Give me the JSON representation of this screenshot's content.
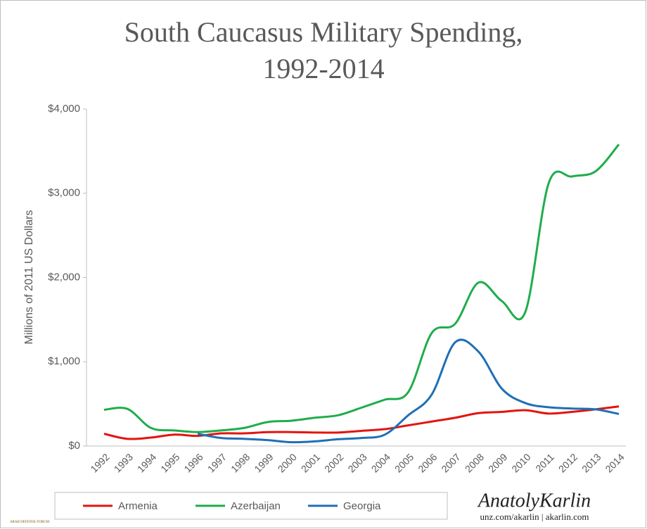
{
  "chart_data": {
    "type": "line",
    "title": [
      "South Caucasus Military Spending,",
      "1992-2014"
    ],
    "y_label": "Millions of 2011 US Dollars",
    "categories": [
      "1992",
      "1993",
      "1994",
      "1995",
      "1996",
      "1997",
      "1998",
      "1999",
      "2000",
      "2001",
      "2002",
      "2003",
      "2004",
      "2005",
      "2006",
      "2007",
      "2008",
      "2009",
      "2010",
      "2011",
      "2012",
      "2013",
      "2014"
    ],
    "series": [
      {
        "name": "Armenia",
        "color": "#e3140f",
        "values": [
          145,
          85,
          100,
          135,
          120,
          150,
          150,
          165,
          165,
          160,
          160,
          180,
          200,
          245,
          290,
          335,
          390,
          405,
          425,
          385,
          405,
          435,
          470
        ]
      },
      {
        "name": "Azerbaijan",
        "color": "#1fad4b",
        "values": [
          430,
          440,
          215,
          185,
          165,
          185,
          215,
          285,
          300,
          335,
          365,
          455,
          550,
          640,
          1340,
          1450,
          1940,
          1720,
          1590,
          3120,
          3200,
          3260,
          3580
        ]
      },
      {
        "name": "Georgia",
        "color": "#1f6fb5",
        "values": [
          null,
          null,
          null,
          null,
          145,
          95,
          85,
          70,
          45,
          55,
          80,
          95,
          135,
          365,
          610,
          1230,
          1120,
          680,
          510,
          460,
          445,
          435,
          380
        ]
      }
    ],
    "ylim": [
      0,
      4000
    ],
    "yticks": [
      {
        "value": 0,
        "label": "$0"
      },
      {
        "value": 1000,
        "label": "$1,000"
      },
      {
        "value": 2000,
        "label": "$2,000"
      },
      {
        "value": 3000,
        "label": "$3,000"
      },
      {
        "value": 4000,
        "label": "$4,000"
      }
    ],
    "legend": "bottom",
    "watermarks": [
      "AnatolyKarlin",
      "unz.com/akarlin | akarlin.com",
      "ARAB DEFENSE FORUM"
    ]
  }
}
